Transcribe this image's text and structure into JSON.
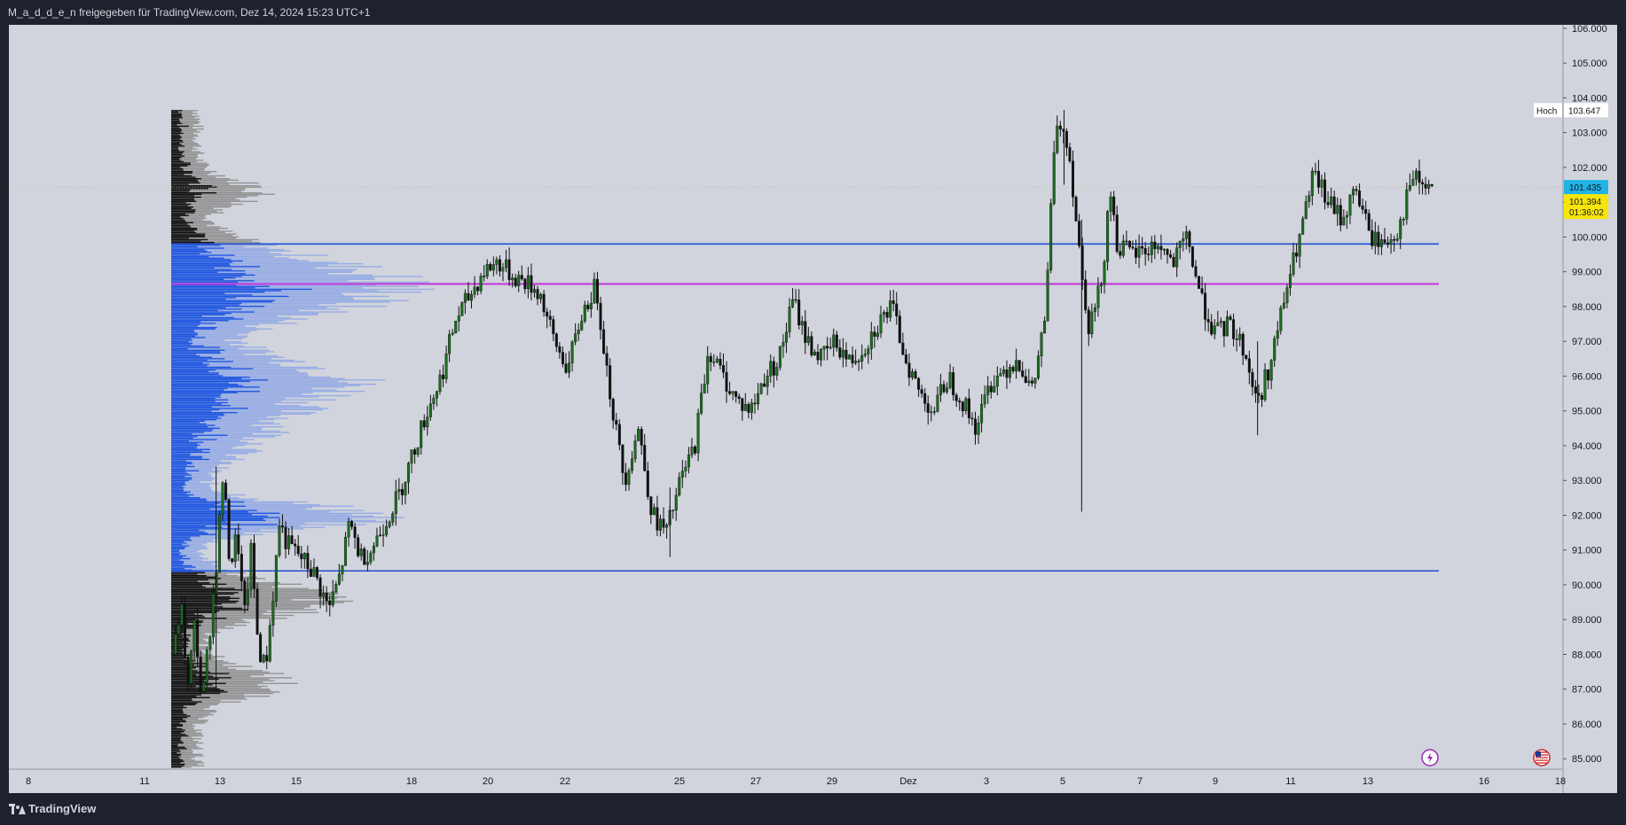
{
  "header": {
    "caption": "M_a_d_d_e_n freigegeben für TradingView.com, Dez 14, 2024 15:23 UTC+1"
  },
  "footer": {
    "brand": "TradingView",
    "logo_icon": "tradingview-logo-icon"
  },
  "colors": {
    "background": "#1e222d",
    "chart_bg": "#d1d4dc",
    "candle_up": "#1b6e1f",
    "candle_down": "#111111",
    "level_line": "#1e4fd6",
    "poc_line": "#c23ddb",
    "profile_blue_dark": "#1f56e0",
    "profile_blue_light": "#8fa7e6",
    "profile_black": "#111111",
    "profile_grey": "#8c8c8c",
    "current_price_bg": "#21b3e6",
    "last_price_bg": "#f5e50a"
  },
  "icons": [
    "lightning-icon",
    "us-flag-icon"
  ],
  "chart_data": {
    "type": "candlestick",
    "y_axis": {
      "ticks": [
        "106.000",
        "105.000",
        "104.000",
        "103.000",
        "102.000",
        "101.000",
        "100.000",
        "99.000",
        "98.000",
        "97.000",
        "96.000",
        "95.000",
        "94.000",
        "93.000",
        "92.000",
        "91.000",
        "90.000",
        "89.000",
        "88.000",
        "87.000",
        "86.000",
        "85.000"
      ],
      "range": [
        84.7,
        106.1
      ]
    },
    "x_axis": {
      "ticks": [
        "8",
        "11",
        "13",
        "15",
        "18",
        "20",
        "22",
        "25",
        "27",
        "29",
        "Dez",
        "3",
        "5",
        "7",
        "9",
        "11",
        "13",
        "16",
        "18"
      ]
    },
    "price_labels": {
      "high_label": "Hoch",
      "high_value": "103.647",
      "current_price": "101.435",
      "last_price": "101.394",
      "countdown": "01:36:02"
    },
    "horizontal_levels": [
      {
        "value": 99.8,
        "role": "value-area-high"
      },
      {
        "value": 98.65,
        "role": "point-of-control"
      },
      {
        "value": 90.4,
        "role": "value-area-low"
      }
    ],
    "price_path": [
      [
        0,
        88.0
      ],
      [
        0.02,
        89.5
      ],
      [
        0.04,
        87.0
      ],
      [
        0.06,
        89.0
      ],
      [
        0.08,
        86.5
      ],
      [
        0.1,
        88.5
      ],
      [
        0.12,
        90.5
      ],
      [
        0.14,
        93.2
      ],
      [
        0.16,
        90.5
      ],
      [
        0.18,
        91.5
      ],
      [
        0.2,
        89.0
      ],
      [
        0.22,
        91.0
      ],
      [
        0.24,
        88.2
      ],
      [
        0.26,
        87.6
      ],
      [
        0.28,
        89.5
      ],
      [
        0.3,
        91.8
      ],
      [
        0.32,
        91.2
      ],
      [
        0.36,
        90.8
      ],
      [
        0.4,
        90.3
      ],
      [
        0.44,
        89.3
      ],
      [
        0.47,
        90.2
      ],
      [
        0.5,
        91.8
      ],
      [
        0.53,
        90.8
      ],
      [
        0.56,
        91.0
      ],
      [
        0.6,
        91.8
      ],
      [
        0.64,
        92.6
      ],
      [
        0.68,
        93.8
      ],
      [
        0.72,
        95.0
      ],
      [
        0.76,
        96.0
      ],
      [
        0.8,
        97.6
      ],
      [
        0.84,
        98.3
      ],
      [
        0.88,
        99.0
      ],
      [
        0.92,
        99.3
      ],
      [
        0.96,
        98.9
      ],
      [
        1.0,
        98.7
      ],
      [
        1.04,
        98.4
      ],
      [
        1.08,
        97.0
      ],
      [
        1.12,
        96.2
      ],
      [
        1.16,
        97.8
      ],
      [
        1.2,
        98.6
      ],
      [
        1.24,
        95.5
      ],
      [
        1.28,
        93.0
      ],
      [
        1.32,
        94.5
      ],
      [
        1.36,
        92.0
      ],
      [
        1.4,
        91.5
      ],
      [
        1.44,
        93.0
      ],
      [
        1.48,
        94.0
      ],
      [
        1.52,
        96.8
      ],
      [
        1.56,
        96.0
      ],
      [
        1.6,
        95.3
      ],
      [
        1.64,
        95.0
      ],
      [
        1.68,
        96.0
      ],
      [
        1.72,
        96.5
      ],
      [
        1.76,
        98.2
      ],
      [
        1.8,
        97.0
      ],
      [
        1.84,
        96.5
      ],
      [
        1.88,
        97.0
      ],
      [
        1.92,
        96.4
      ],
      [
        1.96,
        96.8
      ],
      [
        2.0,
        97.5
      ],
      [
        2.04,
        98.0
      ],
      [
        2.08,
        96.5
      ],
      [
        2.12,
        95.5
      ],
      [
        2.16,
        95.0
      ],
      [
        2.2,
        96.0
      ],
      [
        2.24,
        95.3
      ],
      [
        2.28,
        94.5
      ],
      [
        2.32,
        95.8
      ],
      [
        2.36,
        96.2
      ],
      [
        2.4,
        96.5
      ],
      [
        2.44,
        95.5
      ],
      [
        2.48,
        98.0
      ],
      [
        2.5,
        102.5
      ],
      [
        2.52,
        103.3
      ],
      [
        2.54,
        102.8
      ],
      [
        2.56,
        101.0
      ],
      [
        2.58,
        99.0
      ],
      [
        2.6,
        97.5
      ],
      [
        2.62,
        98.0
      ],
      [
        2.64,
        99.0
      ],
      [
        2.66,
        101.5
      ],
      [
        2.68,
        99.8
      ],
      [
        2.72,
        99.5
      ],
      [
        2.76,
        99.6
      ],
      [
        2.8,
        99.8
      ],
      [
        2.84,
        99.2
      ],
      [
        2.88,
        100.0
      ],
      [
        2.92,
        98.2
      ],
      [
        2.96,
        97.2
      ],
      [
        3.0,
        97.5
      ],
      [
        3.04,
        96.8
      ],
      [
        3.08,
        95.2
      ],
      [
        3.12,
        96.5
      ],
      [
        3.16,
        98.4
      ],
      [
        3.2,
        100.0
      ],
      [
        3.24,
        101.8
      ],
      [
        3.28,
        101.0
      ],
      [
        3.32,
        100.5
      ],
      [
        3.36,
        101.4
      ],
      [
        3.4,
        100.0
      ],
      [
        3.44,
        99.8
      ],
      [
        3.48,
        100.2
      ],
      [
        3.52,
        101.7
      ],
      [
        3.56,
        101.4
      ],
      [
        3.58,
        101.39
      ]
    ],
    "volume_profile": {
      "anchored": true,
      "zones": [
        "upper-grey",
        "value-area-blue",
        "lower-grey"
      ]
    }
  }
}
